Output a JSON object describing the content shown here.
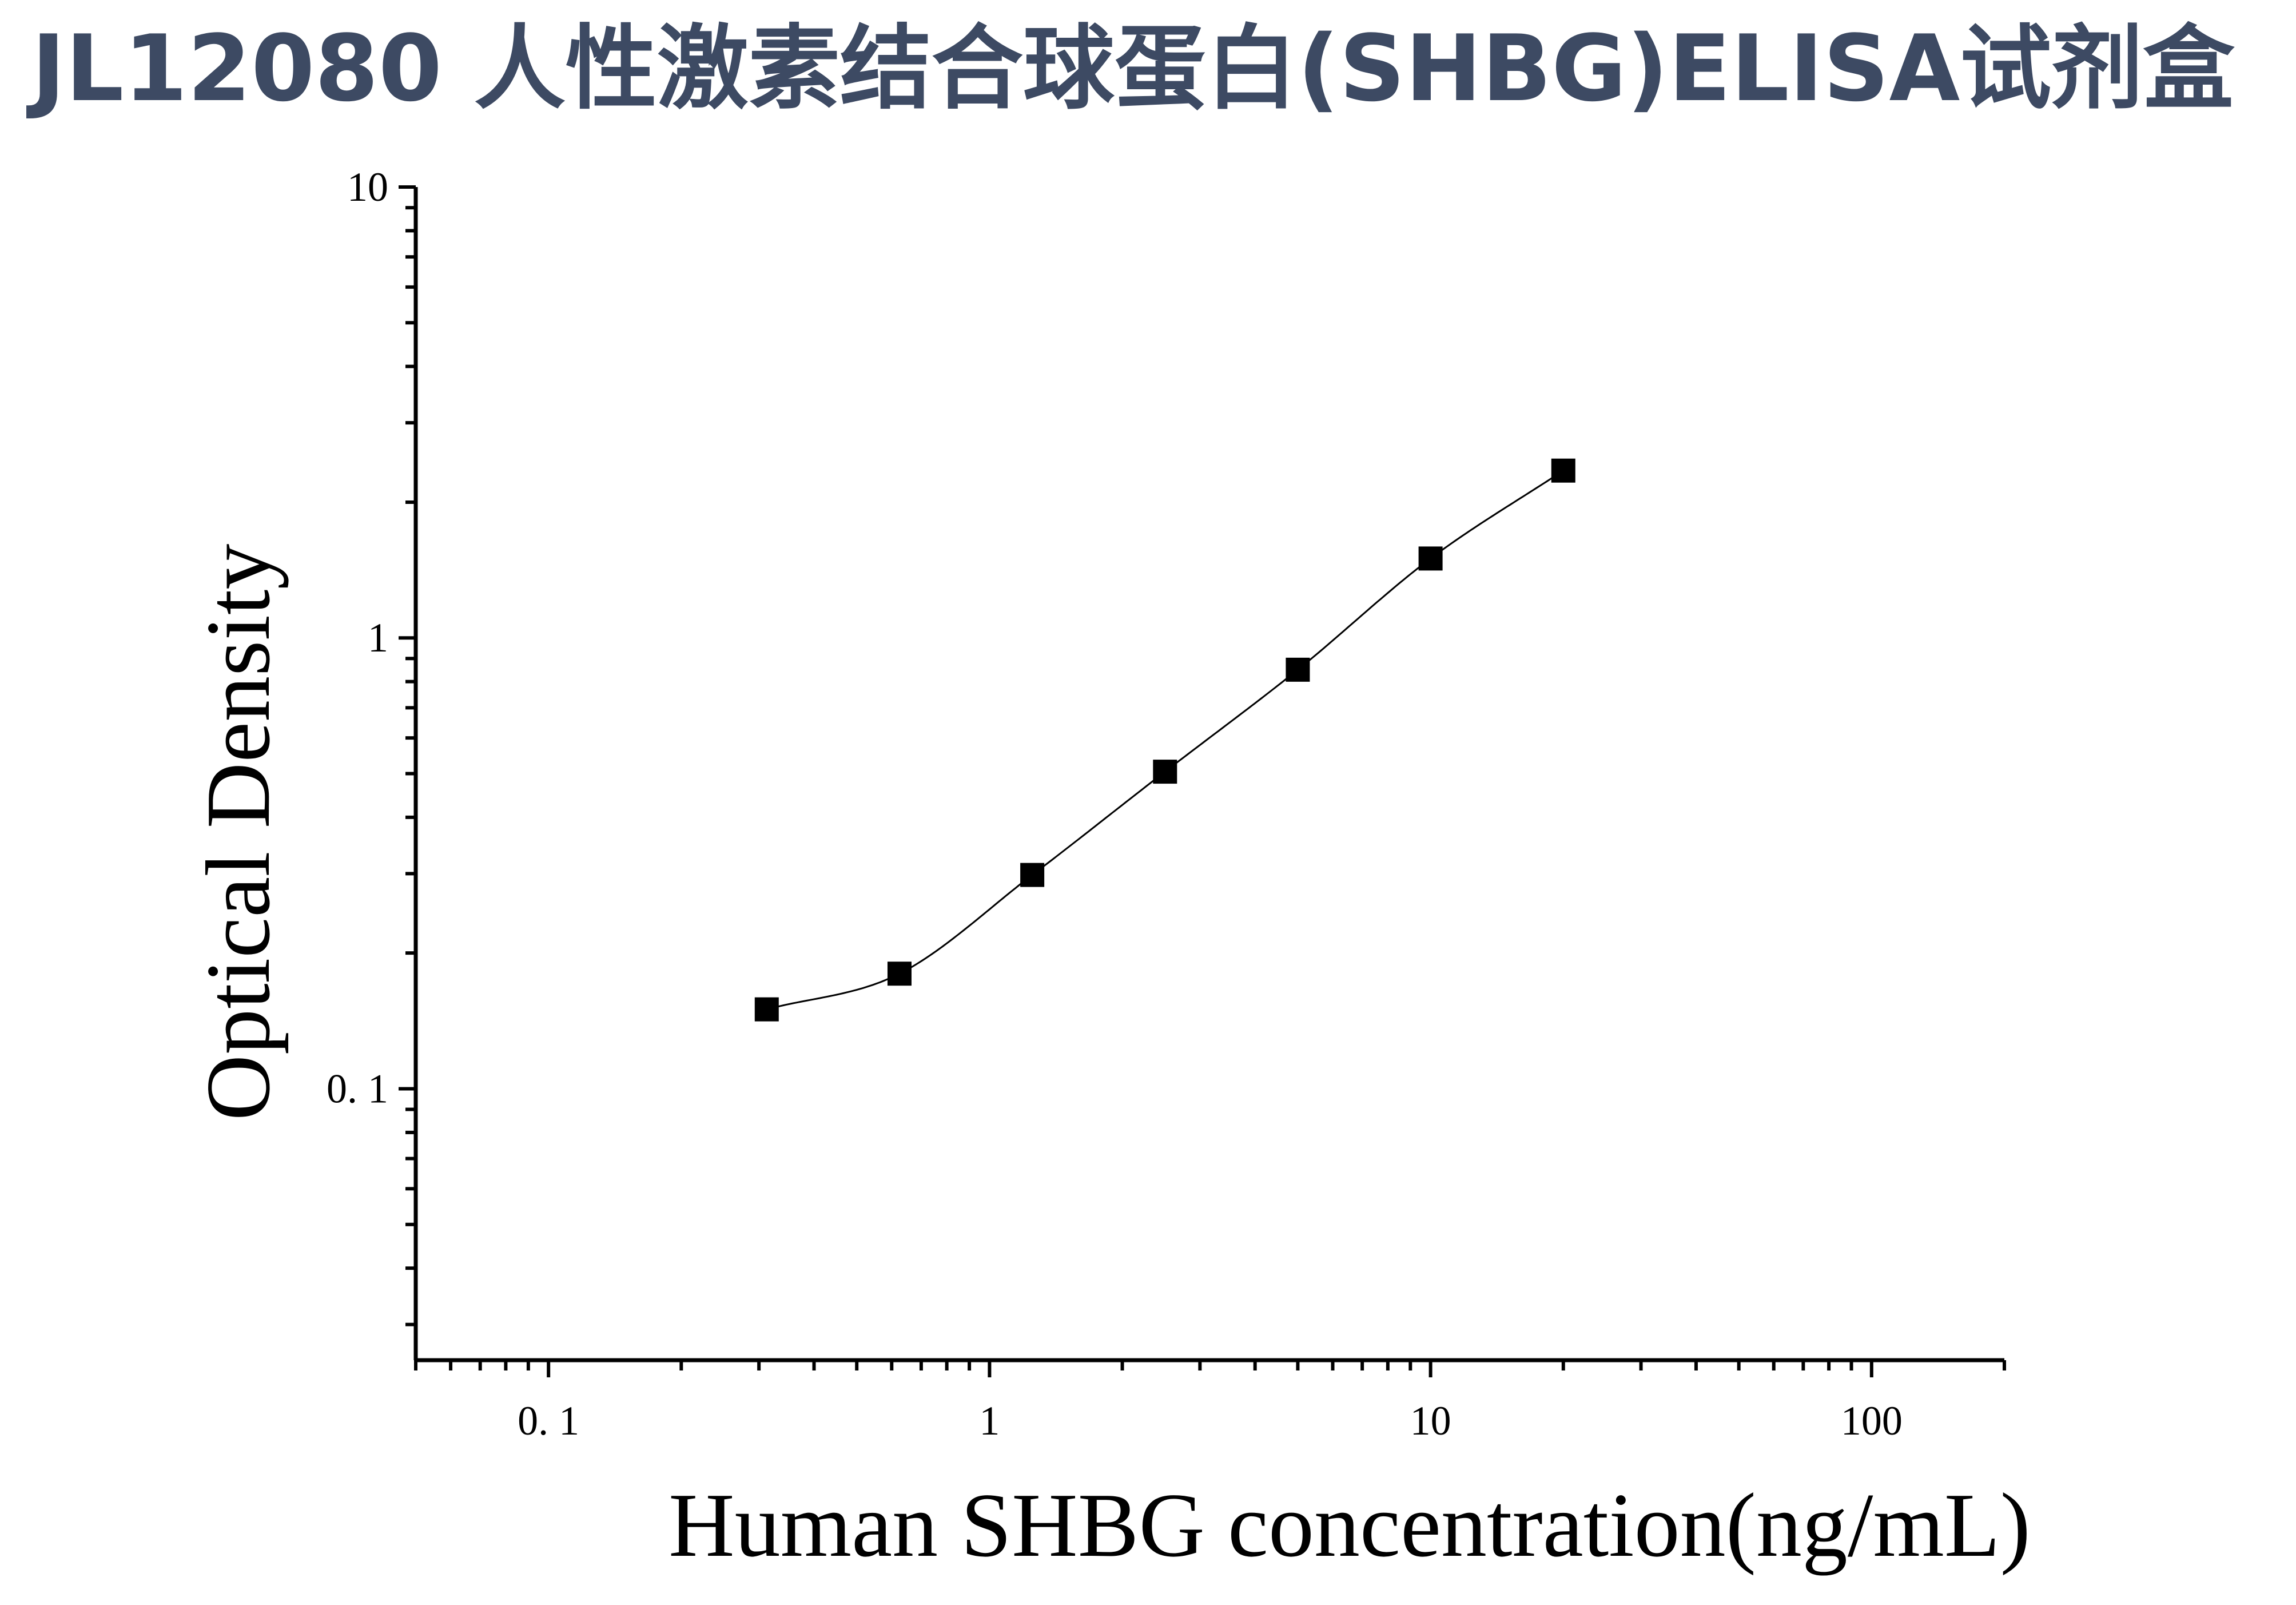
{
  "title": "JL12080 人性激素结合球蛋白(SHBG)ELISA试剂盒",
  "chart_data": {
    "type": "scatter",
    "xlabel": "Human SHBG concentration(ng/mL)",
    "ylabel": "Optical Density",
    "xscale": "log",
    "yscale": "log",
    "xlim": [
      0.05,
      200
    ],
    "ylim": [
      0.025,
      10
    ],
    "x_ticks": [
      {
        "value": 0.1,
        "label": "0. 1"
      },
      {
        "value": 1,
        "label": "1"
      },
      {
        "value": 10,
        "label": "10"
      },
      {
        "value": 100,
        "label": "100"
      }
    ],
    "y_ticks": [
      {
        "value": 0.1,
        "label": "0. 1"
      },
      {
        "value": 1,
        "label": "1"
      },
      {
        "value": 10,
        "label": "10"
      }
    ],
    "series": [
      {
        "marker": "square",
        "color": "#000000",
        "points": [
          {
            "x": 0.3125,
            "y": 0.15
          },
          {
            "x": 0.625,
            "y": 0.18
          },
          {
            "x": 1.25,
            "y": 0.298
          },
          {
            "x": 2.5,
            "y": 0.505
          },
          {
            "x": 5,
            "y": 0.85
          },
          {
            "x": 10,
            "y": 1.5
          },
          {
            "x": 20,
            "y": 2.35
          }
        ]
      }
    ],
    "fit_curve": true,
    "grid": false,
    "legend": "none"
  }
}
